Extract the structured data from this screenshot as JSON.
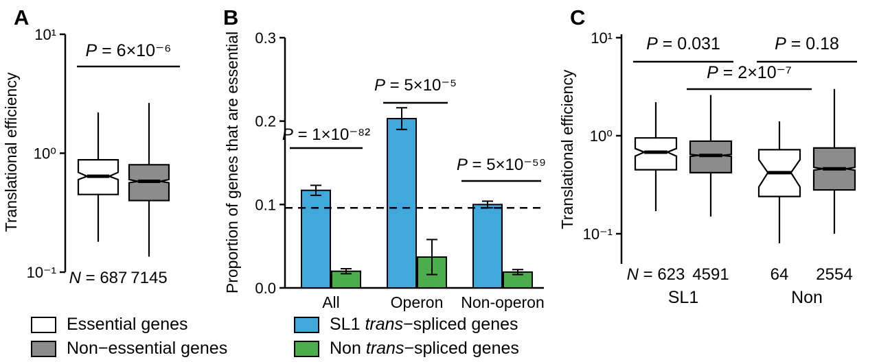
{
  "figure": {
    "panels": [
      "A",
      "B",
      "C"
    ]
  },
  "colors": {
    "essential": "#ffffff",
    "non_essential": "#8c8c8c",
    "sl1": "#41a8db",
    "non_spliced": "#4bad4b",
    "axis": "#000000"
  },
  "legend": {
    "boxes": [
      {
        "label": "Essential genes",
        "swatch": "essential"
      },
      {
        "label": "Non−essential genes",
        "swatch": "non_essential"
      }
    ],
    "bars": [
      {
        "pre": "SL1 ",
        "italic": "trans",
        "post": "−spliced genes",
        "swatch": "sl1"
      },
      {
        "pre": "Non ",
        "italic": "trans",
        "post": "−spliced genes",
        "swatch": "non_spliced"
      }
    ]
  },
  "chart_data": [
    {
      "panel": "A",
      "type": "boxplot",
      "ylabel": "Translational efficiency",
      "yscale": "log",
      "ylim": [
        0.1,
        10
      ],
      "ytick_labels": [
        "10¹",
        "10⁰",
        "10⁻¹"
      ],
      "boxes": [
        {
          "name": "Essential genes",
          "n": 687,
          "fill": "essential",
          "whisker_low": 0.18,
          "q1": 0.45,
          "notch_low": 0.6,
          "median": 0.64,
          "notch_high": 0.69,
          "q3": 0.88,
          "whisker_high": 2.2
        },
        {
          "name": "Non−essential genes",
          "n": 7145,
          "fill": "non_essential",
          "whisker_low": 0.135,
          "q1": 0.4,
          "notch_low": 0.565,
          "median": 0.58,
          "notch_high": 0.6,
          "q3": 0.8,
          "whisker_high": 2.65
        }
      ],
      "p_annotations": [
        {
          "var": "P",
          "rest": " = 6×10⁻⁶",
          "compares": [
            "Essential genes",
            "Non−essential genes"
          ]
        }
      ],
      "n_labels": [
        {
          "var": "N",
          "rest": " = 687"
        },
        {
          "rest": "7145"
        }
      ]
    },
    {
      "panel": "B",
      "type": "bar",
      "ylabel": "Proportion of genes that are essential",
      "ylim": [
        0,
        0.3
      ],
      "yticks": [
        0,
        0.1,
        0.2,
        0.3
      ],
      "ytick_labels": [
        "0.0",
        "0.1",
        "0.2",
        "0.3"
      ],
      "categories": [
        "All",
        "Operon",
        "Non-operon"
      ],
      "series": [
        {
          "name": "SL1 trans−spliced genes",
          "fill": "sl1",
          "values": [
            0.117,
            0.203,
            0.1
          ],
          "errors": [
            0.006,
            0.013,
            0.004
          ]
        },
        {
          "name": "Non trans−spliced genes",
          "fill": "non_spliced",
          "values": [
            0.02,
            0.037,
            0.019
          ],
          "errors": [
            0.003,
            0.021,
            0.003
          ]
        }
      ],
      "dashed_line": 0.096,
      "p_annotations": [
        {
          "var": "P",
          "rest": " = 1×10⁻⁸²",
          "category": "All"
        },
        {
          "var": "P",
          "rest": " = 5×10⁻⁵",
          "category": "Operon"
        },
        {
          "var": "P",
          "rest": " = 5×10⁻⁵⁹",
          "category": "Non-operon"
        }
      ]
    },
    {
      "panel": "C",
      "type": "boxplot",
      "ylabel": "Translational efficiency",
      "yscale": "log",
      "ylim": [
        0.06,
        10
      ],
      "ytick_labels": [
        "10¹",
        "10⁰",
        "10⁻¹"
      ],
      "boxes": [
        {
          "name": "SL1 essential",
          "n": 623,
          "fill": "essential",
          "whisker_low": 0.17,
          "q1": 0.45,
          "notch_low": 0.62,
          "median": 0.68,
          "notch_high": 0.74,
          "q3": 0.95,
          "whisker_high": 2.2
        },
        {
          "name": "SL1 non−essential",
          "n": 4591,
          "fill": "non_essential",
          "whisker_low": 0.15,
          "q1": 0.42,
          "notch_low": 0.615,
          "median": 0.63,
          "notch_high": 0.645,
          "q3": 0.88,
          "whisker_high": 2.6
        },
        {
          "name": "Non essential",
          "n": 64,
          "fill": "essential",
          "whisker_low": 0.08,
          "q1": 0.24,
          "notch_low": 0.3,
          "median": 0.42,
          "notch_high": 0.57,
          "q3": 0.72,
          "whisker_high": 1.4
        },
        {
          "name": "Non non−essential",
          "n": 2554,
          "fill": "non_essential",
          "whisker_low": 0.1,
          "q1": 0.28,
          "notch_low": 0.445,
          "median": 0.46,
          "notch_high": 0.475,
          "q3": 0.75,
          "whisker_high": 3.0
        }
      ],
      "p_annotations": [
        {
          "var": "P",
          "rest": " = 0.031",
          "compares": [
            "SL1 essential",
            "SL1 non−essential"
          ]
        },
        {
          "var": "P",
          "rest": " = 0.18",
          "compares": [
            "Non essential",
            "Non non−essential"
          ]
        },
        {
          "var": "P",
          "rest": " = 2×10⁻⁷",
          "compares": [
            "SL1",
            "Non"
          ]
        }
      ],
      "n_labels": [
        {
          "var": "N",
          "rest": " = 623"
        },
        {
          "rest": "4591"
        },
        {
          "rest": "64"
        },
        {
          "rest": "2554"
        }
      ],
      "group_labels": [
        "SL1",
        "Non"
      ]
    }
  ]
}
